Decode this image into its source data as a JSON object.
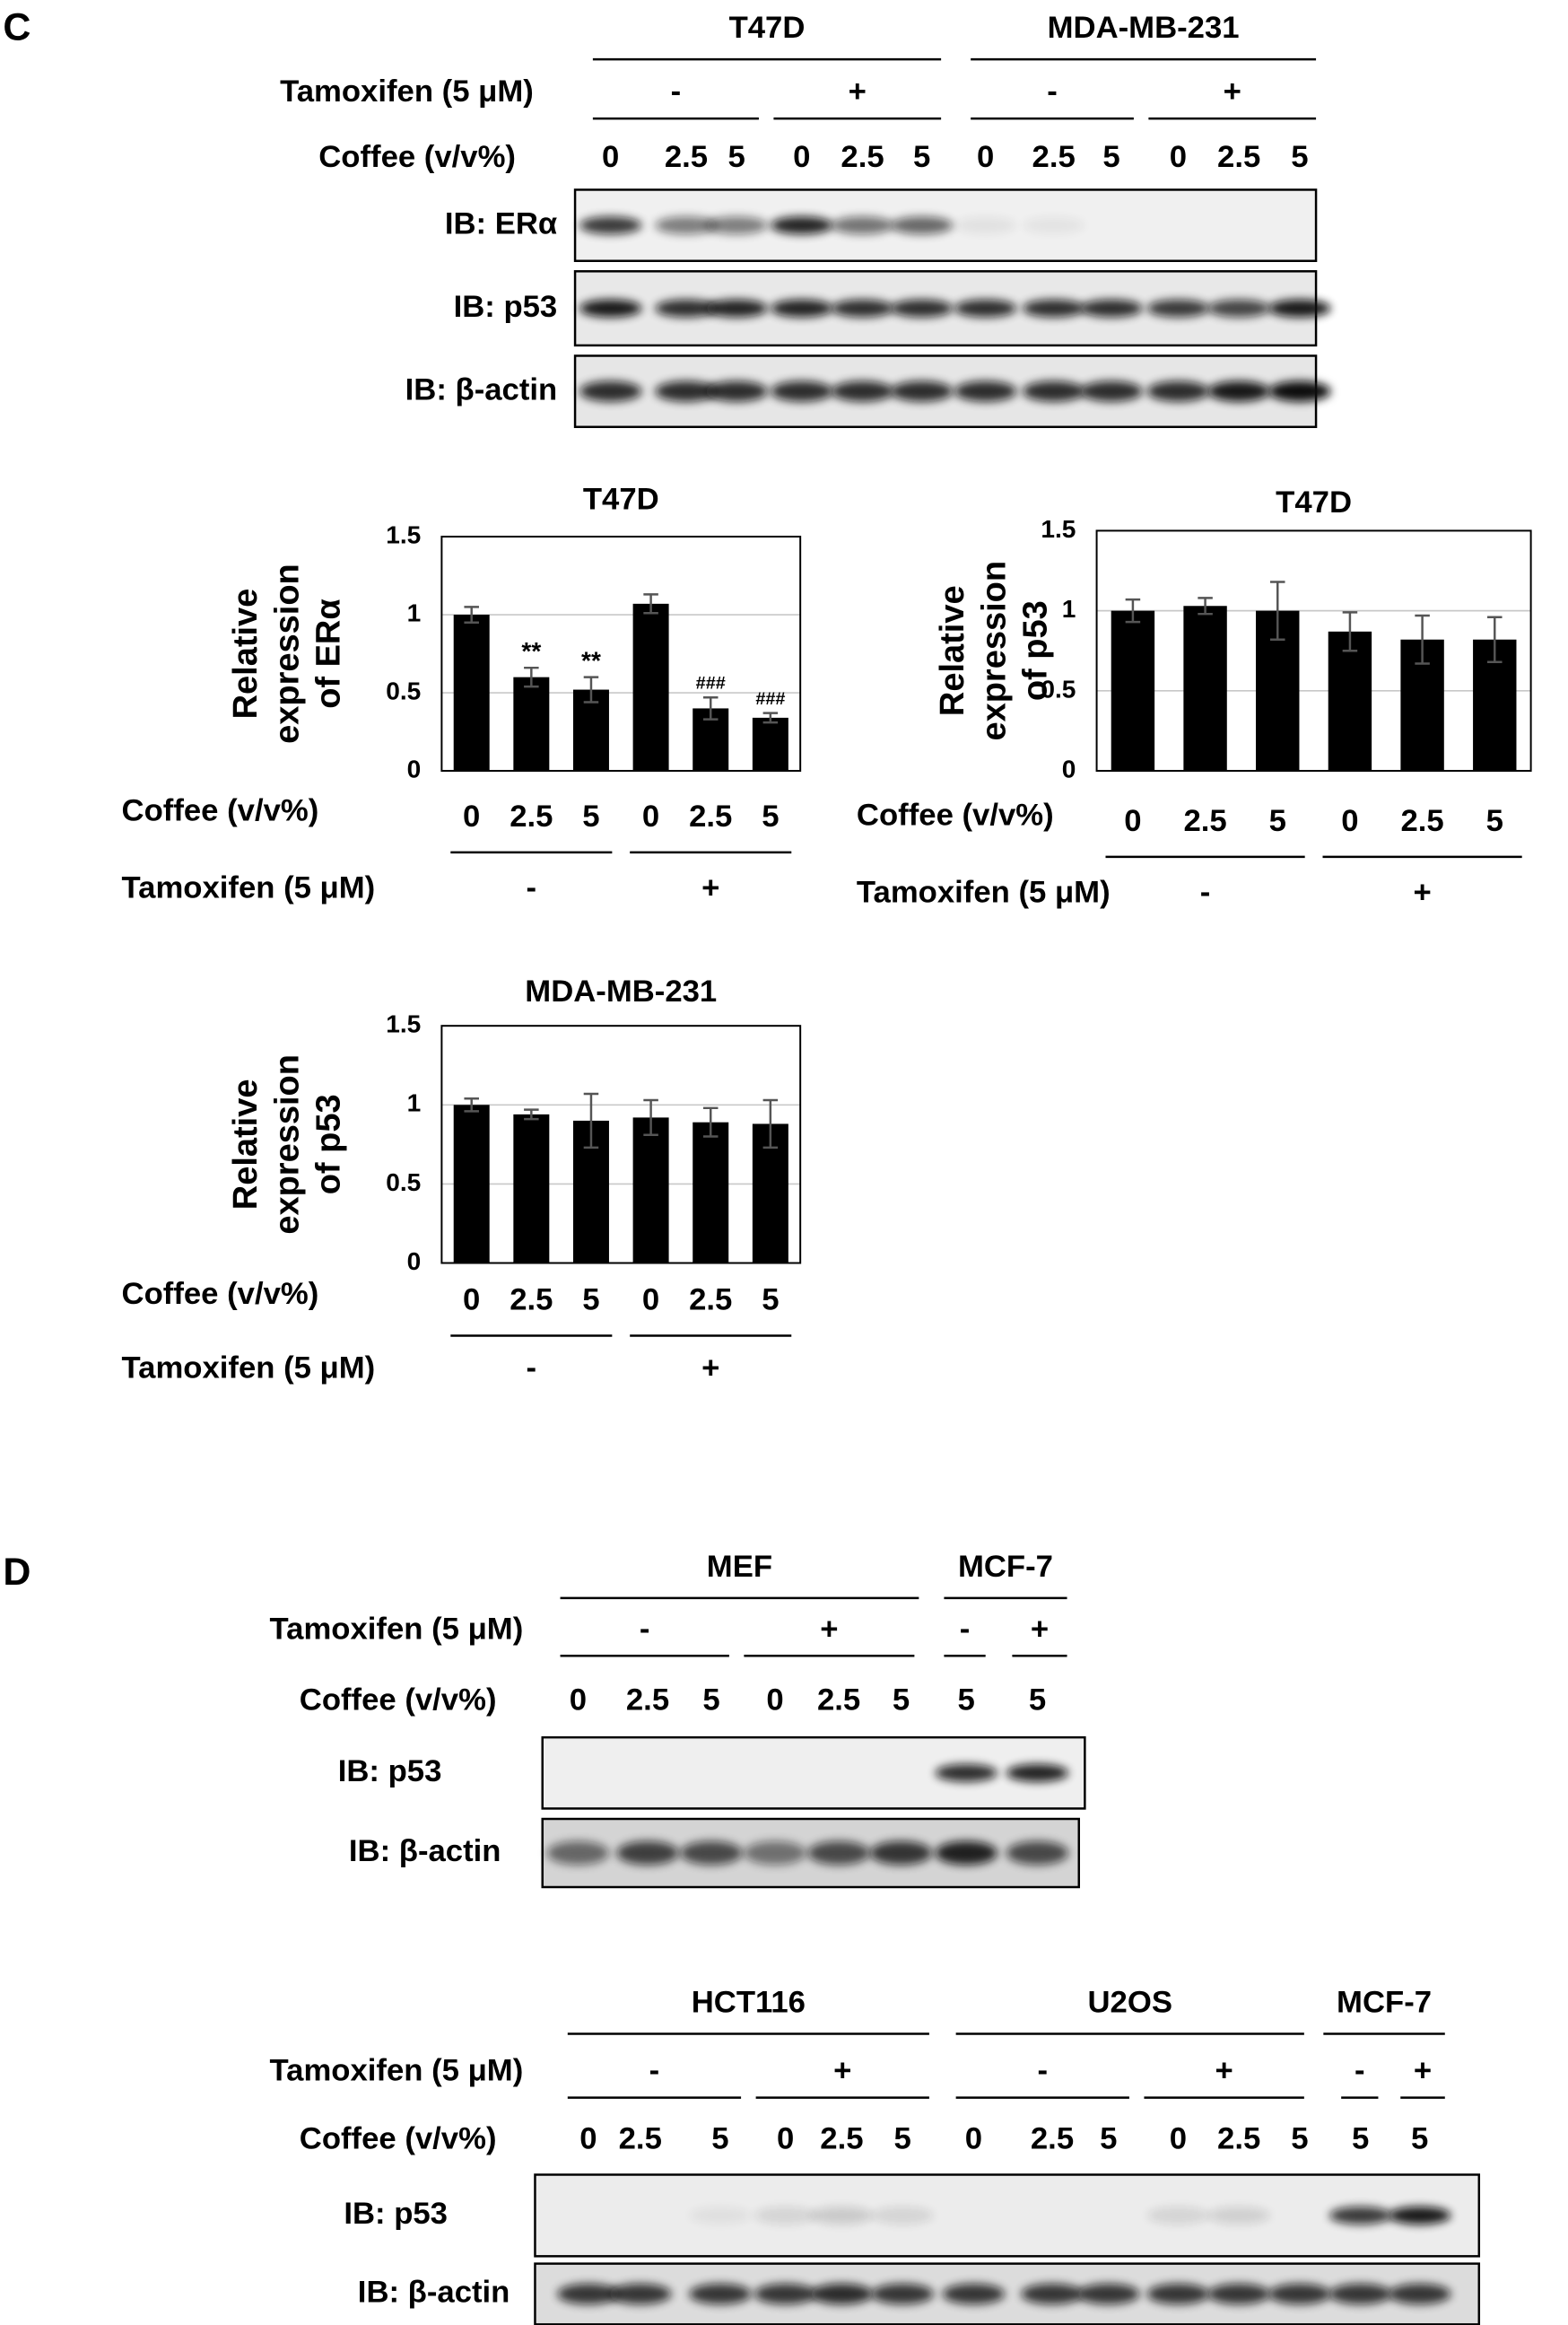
{
  "panel_c": {
    "label": "C",
    "cell_lines": [
      "T47D",
      "MDA-MB-231"
    ],
    "tamoxifen_label": "Tamoxifen (5 μM)",
    "tamoxifen_groups": [
      "-",
      "+",
      "-",
      "+"
    ],
    "coffee_label": "Coffee (v/v%)",
    "coffee_doses": [
      "0",
      "2.5",
      "5",
      "0",
      "2.5",
      "5",
      "0",
      "2.5",
      "5",
      "0",
      "2.5",
      "5"
    ],
    "blots": [
      "IB: ERα",
      "IB: p53",
      "IB: β-actin"
    ]
  },
  "chart_data": [
    {
      "type": "bar",
      "title": "T47D",
      "ylabel": [
        "Relative",
        "expression",
        "of ERα"
      ],
      "xlabel": "Coffee (v/v%)",
      "categories": [
        "0",
        "2.5",
        "5",
        "0",
        "2.5",
        "5"
      ],
      "group_label": "Tamoxifen (5 μM)",
      "groups": [
        "-",
        "+"
      ],
      "values": [
        1.0,
        0.6,
        0.52,
        1.07,
        0.4,
        0.34
      ],
      "errors": [
        0.05,
        0.06,
        0.08,
        0.06,
        0.07,
        0.03
      ],
      "significance": [
        null,
        "**",
        "**",
        null,
        "###",
        "###"
      ],
      "color": "#000000",
      "ylim": [
        0,
        1.5
      ],
      "yticks": [
        0,
        0.5,
        1,
        1.5
      ],
      "grid": true
    },
    {
      "type": "bar",
      "title": "T47D",
      "ylabel": [
        "Relative",
        "expression",
        "of p53"
      ],
      "xlabel": "Coffee (v/v%)",
      "categories": [
        "0",
        "2.5",
        "5",
        "0",
        "2.5",
        "5"
      ],
      "group_label": "Tamoxifen (5 μM)",
      "groups": [
        "-",
        "+"
      ],
      "values": [
        1.0,
        1.03,
        1.0,
        0.87,
        0.82,
        0.82
      ],
      "errors": [
        0.07,
        0.05,
        0.18,
        0.12,
        0.15,
        0.14
      ],
      "color": "#000000",
      "ylim": [
        0,
        1.5
      ],
      "yticks": [
        0,
        0.5,
        1,
        1.5
      ],
      "grid": true
    },
    {
      "type": "bar",
      "title": "MDA-MB-231",
      "ylabel": [
        "Relative",
        "expression",
        "of p53"
      ],
      "xlabel": "Coffee (v/v%)",
      "categories": [
        "0",
        "2.5",
        "5",
        "0",
        "2.5",
        "5"
      ],
      "group_label": "Tamoxifen (5 μM)",
      "groups": [
        "-",
        "+"
      ],
      "values": [
        1.0,
        0.94,
        0.9,
        0.92,
        0.89,
        0.88
      ],
      "errors": [
        0.04,
        0.03,
        0.17,
        0.11,
        0.09,
        0.15
      ],
      "color": "#000000",
      "ylim": [
        0,
        1.5
      ],
      "yticks": [
        0,
        0.5,
        1,
        1.5
      ],
      "grid": true
    }
  ],
  "panel_d": {
    "label": "D",
    "top": {
      "cell_lines": [
        "MEF",
        "MCF-7"
      ],
      "tamoxifen_label": "Tamoxifen (5 μM)",
      "tamoxifen_groups": [
        "-",
        "+",
        "-",
        "+"
      ],
      "coffee_label": "Coffee (v/v%)",
      "coffee_doses": [
        "0",
        "2.5",
        "5",
        "0",
        "2.5",
        "5",
        "5",
        "5"
      ],
      "blots": [
        "IB: p53",
        "IB: β-actin"
      ]
    },
    "bottom": {
      "cell_lines": [
        "HCT116",
        "U2OS",
        "MCF-7"
      ],
      "tamoxifen_label": "Tamoxifen (5 μM)",
      "tamoxifen_groups": [
        "-",
        "+",
        "-",
        "+",
        "-",
        "+"
      ],
      "coffee_label": "Coffee (v/v%)",
      "coffee_doses": [
        "0",
        "2.5",
        "5",
        "0",
        "2.5",
        "5",
        "0",
        "2.5",
        "5",
        "0",
        "2.5",
        "5",
        "5",
        "5"
      ],
      "blots": [
        "IB: p53",
        "IB: β-actin"
      ]
    }
  }
}
